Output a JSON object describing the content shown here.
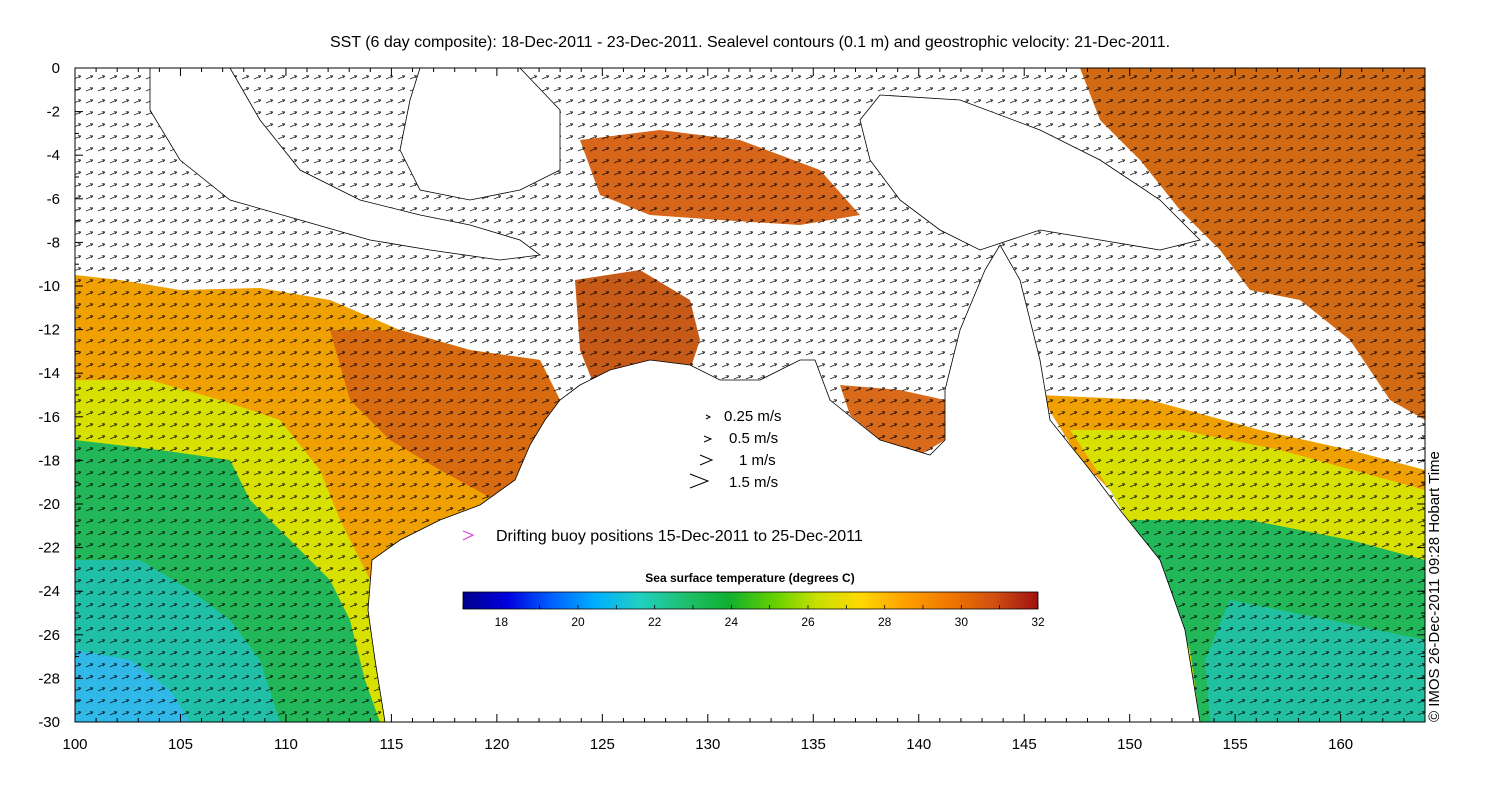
{
  "title": "SST (6 day composite): 18-Dec-2011 - 23-Dec-2011. Sealevel contours (0.1 m) and geostrophic velocity: 21-Dec-2011.",
  "credit": "© IMOS 26-Dec-2011 09:28 Hobart Time",
  "x_ticks": [
    "100",
    "105",
    "110",
    "115",
    "120",
    "125",
    "130",
    "135",
    "140",
    "145",
    "150",
    "155",
    "160"
  ],
  "y_ticks": [
    "0",
    "-2",
    "-4",
    "-6",
    "-8",
    "-10",
    "-12",
    "-14",
    "-16",
    "-18",
    "-20",
    "-22",
    "-24",
    "-26",
    "-28",
    "-30"
  ],
  "velocity_legend": [
    "0.25 m/s",
    "0.5 m/s",
    "1 m/s",
    "1.5 m/s"
  ],
  "buoy_legend": "Drifting buoy positions 15-Dec-2011 to 25-Dec-2011",
  "colorbar": {
    "title": "Sea surface temperature (degrees C)",
    "min": 17,
    "max": 32,
    "labels": [
      "18",
      "20",
      "22",
      "24",
      "26",
      "28",
      "30",
      "32"
    ],
    "colors": [
      "#00008b",
      "#0000e0",
      "#0060ff",
      "#00b0ff",
      "#20d0c0",
      "#20c070",
      "#10b030",
      "#60d000",
      "#c8e000",
      "#ffd800",
      "#ffa000",
      "#f07800",
      "#d05010",
      "#a01010"
    ]
  },
  "colors": {
    "buoy": "#e040e0"
  }
}
